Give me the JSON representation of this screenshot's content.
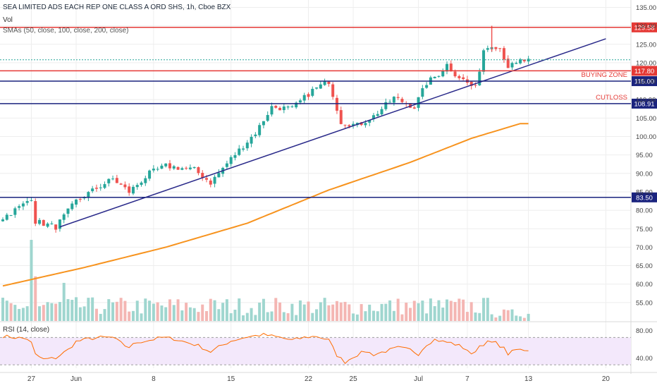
{
  "header": {
    "title": "SEA LIMITED ADS EACH REP ONE CLASS A ORD SHS, 1h, Cboe BZX",
    "vol_label": "Vol",
    "sma_label": "SMAs (50, close, 100, close, 200, close)",
    "rsi_label": "RSI (14, close)"
  },
  "chart_data": {
    "type": "candlestick",
    "price_axis": {
      "range": [
        50,
        137
      ],
      "ticks": [
        55,
        60,
        65,
        70,
        75,
        80,
        85,
        90,
        95,
        100,
        105,
        110,
        115,
        120,
        125,
        130,
        135
      ],
      "tick_labels": [
        "55.00",
        "60.00",
        "65.00",
        "70.00",
        "75.00",
        "80.00",
        "85.00",
        "90.00",
        "95.00",
        "100.00",
        "105.00",
        "110.00",
        "115.00",
        "120.00",
        "125.00",
        "130.00",
        "135.00"
      ]
    },
    "x_axis": {
      "ticks": [
        {
          "label": "27",
          "bar": 7
        },
        {
          "label": "Jun",
          "bar": 18
        },
        {
          "label": "8",
          "bar": 37
        },
        {
          "label": "15",
          "bar": 56
        },
        {
          "label": "22",
          "bar": 75
        },
        {
          "label": "25",
          "bar": 86
        },
        {
          "label": "Jul",
          "bar": 102
        },
        {
          "label": "7",
          "bar": 114
        },
        {
          "label": "13",
          "bar": 129
        },
        {
          "label": "20",
          "bar": 148
        }
      ]
    },
    "bar_count": 130,
    "price_anchors": [
      [
        0,
        78.0
      ],
      [
        5,
        81.5
      ],
      [
        7,
        83.5
      ],
      [
        8,
        77.0
      ],
      [
        13,
        75.5
      ],
      [
        18,
        82.5
      ],
      [
        23,
        86.0
      ],
      [
        27,
        88.5
      ],
      [
        31,
        85.0
      ],
      [
        36,
        90.0
      ],
      [
        40,
        92.0
      ],
      [
        47,
        91.0
      ],
      [
        51,
        87.5
      ],
      [
        56,
        94.0
      ],
      [
        62,
        101.0
      ],
      [
        66,
        108.0
      ],
      [
        71,
        107.5
      ],
      [
        76,
        112.5
      ],
      [
        80,
        115.0
      ],
      [
        83,
        104.0
      ],
      [
        87,
        103.0
      ],
      [
        91,
        105.5
      ],
      [
        96,
        110.5
      ],
      [
        101,
        108.0
      ],
      [
        104,
        114.5
      ],
      [
        107,
        117.0
      ],
      [
        109,
        119.5
      ],
      [
        111,
        117.0
      ],
      [
        114,
        114.5
      ],
      [
        116,
        113.0
      ],
      [
        118,
        123.5
      ],
      [
        120,
        125.0
      ],
      [
        122,
        124.0
      ],
      [
        124,
        119.0
      ],
      [
        126,
        119.5
      ],
      [
        127,
        120.5
      ]
    ],
    "sma": {
      "color": "#f7931e",
      "anchors": [
        [
          0,
          59.5
        ],
        [
          20,
          64.5
        ],
        [
          40,
          70.0
        ],
        [
          60,
          76.5
        ],
        [
          80,
          85.5
        ],
        [
          100,
          93.0
        ],
        [
          115,
          99.5
        ],
        [
          127,
          103.5
        ]
      ]
    },
    "trendline": {
      "color": "#2a2a8a",
      "from": [
        14,
        75.5
      ],
      "to": [
        148,
        126.5
      ]
    },
    "levels": [
      {
        "value": 129.58,
        "label": "129.58",
        "color": "#e53935"
      },
      {
        "value": 117.8,
        "label": "117.80",
        "color": "#e53935"
      },
      {
        "value": 115.0,
        "label": "115.00",
        "color": "#1a237e"
      },
      {
        "value": 108.91,
        "label": "108.91",
        "color": "#1a237e"
      },
      {
        "value": 83.5,
        "label": "83.50",
        "color": "#1a237e"
      }
    ],
    "last_price": {
      "value": 120.8,
      "color": "#26a69a"
    },
    "annotations": [
      {
        "text": "BUYING ZONE",
        "at": 116.7
      },
      {
        "text": "CUTLOSS",
        "at": 110.6
      }
    ],
    "rsi": {
      "range": [
        25,
        90
      ],
      "ticks": [
        40,
        80
      ],
      "tick_labels": [
        "40.00",
        "80.00"
      ],
      "bands": [
        70,
        30
      ],
      "line_color": "#ff6d00",
      "anchors": [
        [
          0,
          72
        ],
        [
          3,
          70
        ],
        [
          6,
          68
        ],
        [
          7,
          62
        ],
        [
          8,
          45
        ],
        [
          10,
          38
        ],
        [
          13,
          40
        ],
        [
          16,
          52
        ],
        [
          18,
          64
        ],
        [
          21,
          68
        ],
        [
          24,
          70
        ],
        [
          27,
          70
        ],
        [
          30,
          58
        ],
        [
          31,
          56
        ],
        [
          33,
          63
        ],
        [
          36,
          66
        ],
        [
          39,
          70
        ],
        [
          42,
          68
        ],
        [
          45,
          63
        ],
        [
          48,
          58
        ],
        [
          51,
          49
        ],
        [
          53,
          56
        ],
        [
          56,
          65
        ],
        [
          60,
          71
        ],
        [
          64,
          74
        ],
        [
          68,
          70
        ],
        [
          71,
          66
        ],
        [
          74,
          70
        ],
        [
          77,
          72
        ],
        [
          80,
          66
        ],
        [
          82,
          44
        ],
        [
          84,
          34
        ],
        [
          86,
          42
        ],
        [
          89,
          50
        ],
        [
          91,
          45
        ],
        [
          94,
          50
        ],
        [
          97,
          55
        ],
        [
          100,
          52
        ],
        [
          102,
          46
        ],
        [
          104,
          60
        ],
        [
          106,
          67
        ],
        [
          108,
          64
        ],
        [
          110,
          62
        ],
        [
          112,
          58
        ],
        [
          114,
          52
        ],
        [
          115,
          44
        ],
        [
          117,
          58
        ],
        [
          119,
          63
        ],
        [
          121,
          62
        ],
        [
          123,
          54
        ],
        [
          124,
          46
        ],
        [
          126,
          52
        ],
        [
          127,
          52
        ]
      ]
    },
    "volume": {
      "up_color": "#9fd6cf",
      "down_color": "#f4b6b3",
      "spikes": [
        [
          7,
          1.0
        ],
        [
          8,
          0.55
        ],
        [
          15,
          0.47
        ]
      ]
    }
  },
  "colors": {
    "up": "#26a69a",
    "down": "#ef5350",
    "grid": "#eeeeee",
    "axis_text": "#444444"
  }
}
